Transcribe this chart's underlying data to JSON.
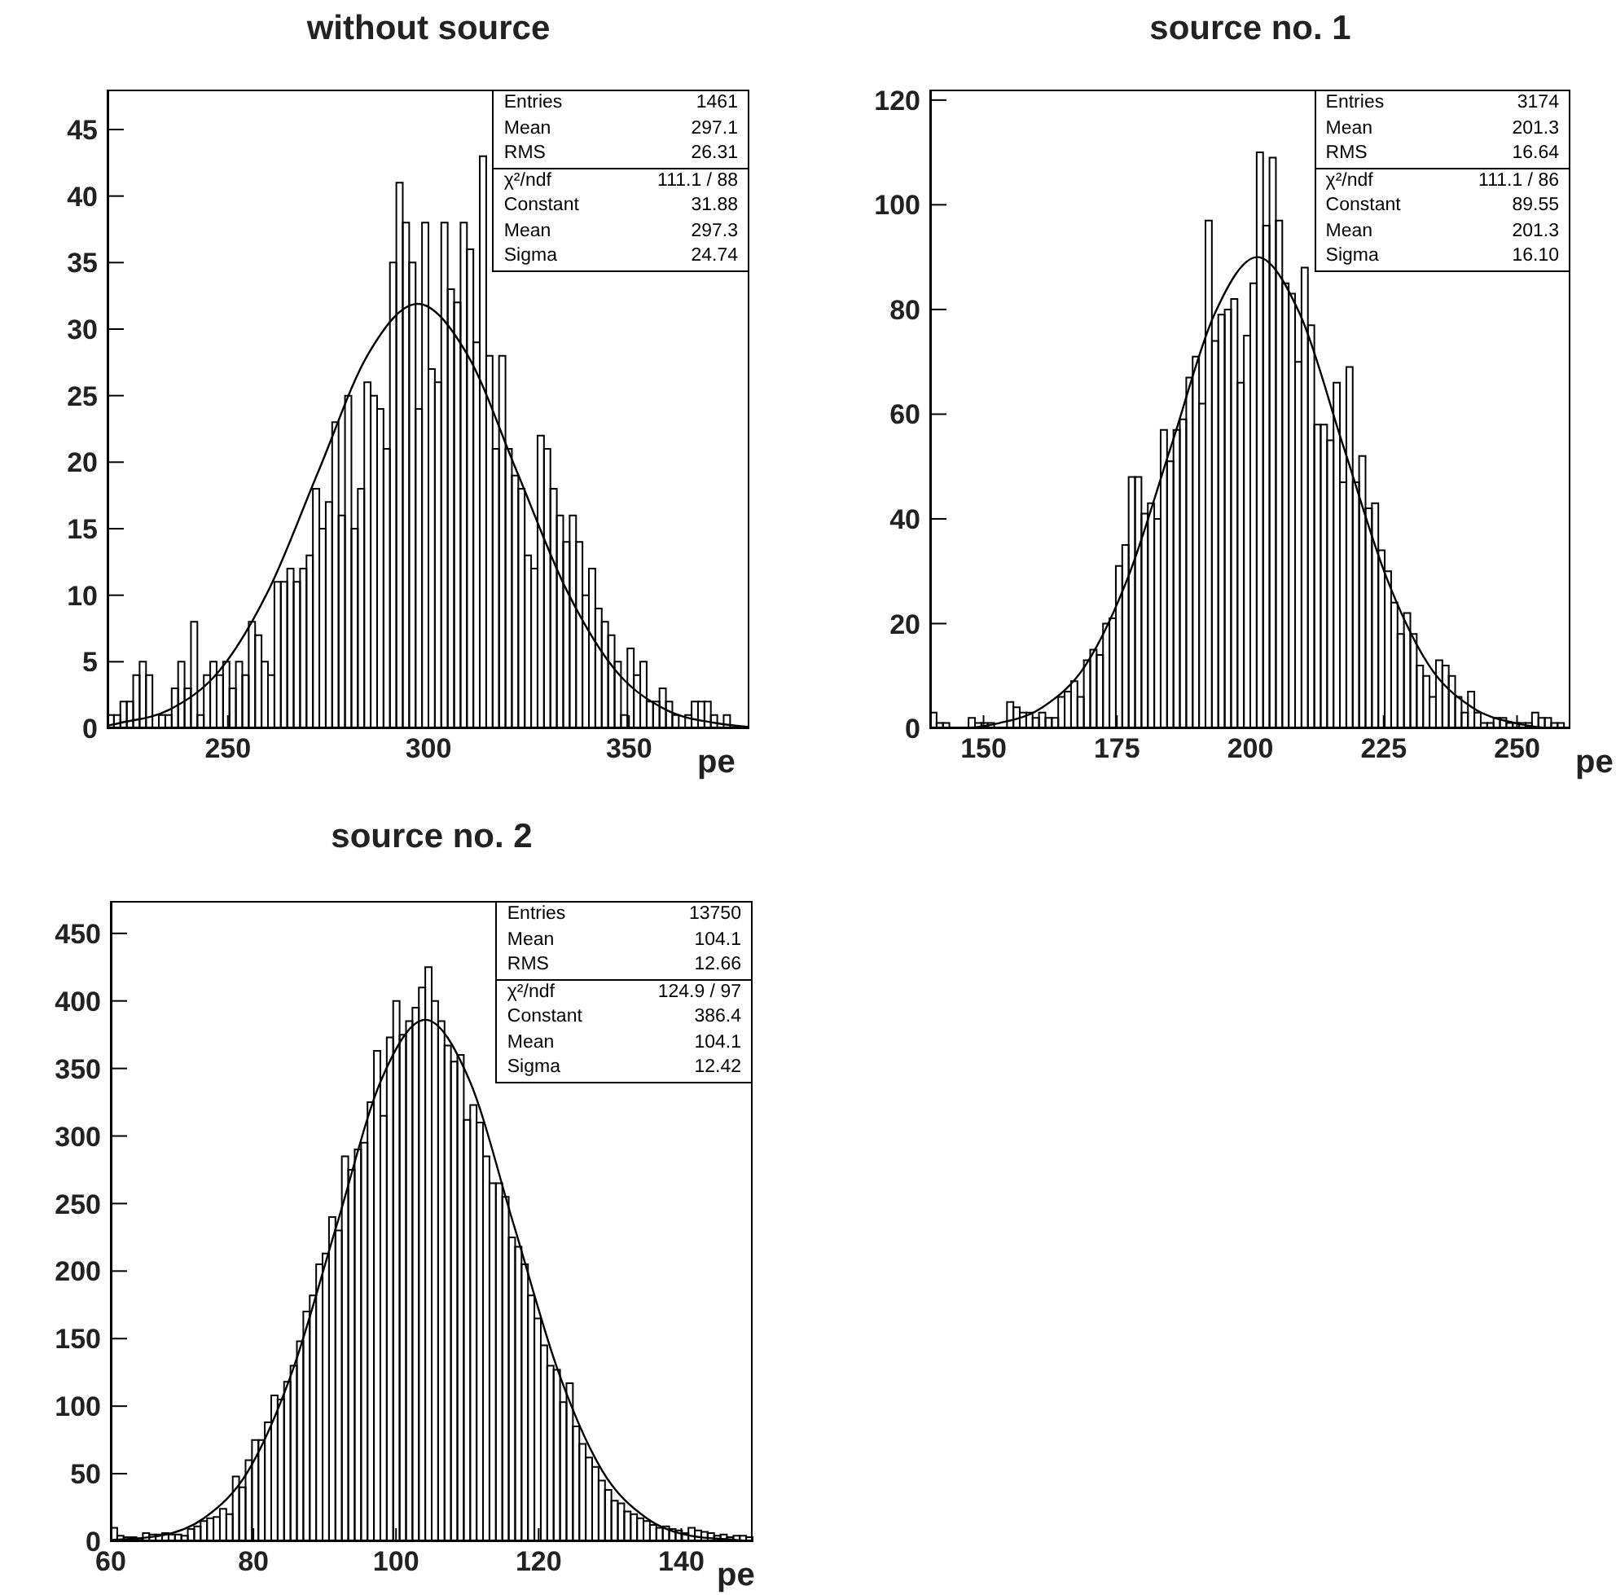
{
  "chart_data": [
    {
      "type": "histogram",
      "title": "without source",
      "xlabel": "pe",
      "color": "#000000",
      "xlim": [
        220,
        380
      ],
      "xticks": [
        250,
        300,
        350
      ],
      "ylim": [
        0,
        48
      ],
      "yticks": [
        0,
        5,
        10,
        15,
        20,
        25,
        30,
        35,
        40,
        45
      ],
      "bins": [
        220,
        221.6,
        223.2,
        224.8,
        226.4,
        228,
        229.6,
        231.2,
        232.8,
        234.4,
        236,
        237.6,
        239.2,
        240.8,
        242.4,
        244,
        245.6,
        247.2,
        248.8,
        250.4,
        252,
        253.6,
        255.2,
        256.8,
        258.4,
        260,
        261.6,
        263.2,
        264.8,
        266.4,
        268,
        269.6,
        271.2,
        272.8,
        274.4,
        276,
        277.6,
        279.2,
        280.8,
        282.4,
        284,
        285.6,
        287.2,
        288.8,
        290.4,
        292,
        293.6,
        295.2,
        296.8,
        298.4,
        300,
        301.6,
        303.2,
        304.8,
        306.4,
        308,
        309.6,
        311.2,
        312.8,
        314.4,
        316,
        317.6,
        319.2,
        320.8,
        322.4,
        324,
        325.6,
        327.2,
        328.8,
        330.4,
        332,
        333.6,
        335.2,
        336.8,
        338.4,
        340,
        341.6,
        343.2,
        344.8,
        346.4,
        348,
        349.6,
        351.2,
        352.8,
        354.4,
        356,
        357.6,
        359.2,
        360.8,
        362.4,
        364,
        365.6,
        367.2,
        368.8,
        370.4,
        372,
        373.6,
        375.2,
        376.8,
        378.4,
        380
      ],
      "values": [
        1,
        1,
        2,
        2,
        4,
        5,
        4,
        0,
        1,
        1,
        3,
        5,
        3,
        8,
        1,
        4,
        5,
        4,
        5,
        3,
        5,
        4,
        8,
        7,
        5,
        4,
        11,
        11,
        12,
        11,
        12,
        13,
        18,
        15,
        17,
        23,
        16,
        25,
        15,
        18,
        26,
        25,
        24,
        21,
        35,
        41,
        38,
        35,
        24,
        38,
        27,
        26,
        38,
        33,
        32,
        38,
        36,
        29,
        43,
        28,
        21,
        28,
        21,
        19,
        18,
        13,
        12,
        22,
        21,
        18,
        16,
        14,
        16,
        14,
        10,
        12,
        9,
        8,
        7,
        5,
        1,
        6,
        4,
        5,
        2,
        2,
        3,
        2,
        1,
        0,
        1,
        2,
        2,
        2,
        1,
        0,
        1,
        0,
        0,
        0
      ],
      "annotations": [
        "Entries 1461",
        "Mean 297.1",
        "RMS 26.31",
        "χ²/ndf 111.1 / 88",
        "Constant 31.88",
        "Mean 297.3",
        "Sigma 24.74"
      ],
      "series": [
        {
          "type": "line",
          "color": "#000000",
          "x": [
            220,
            223.08,
            235.45,
            247.82,
            260.19,
            272.56,
            284.93,
            297.3,
            309.67,
            322.04,
            334.41,
            346.78,
            359.15,
            371.52,
            380
          ],
          "values": [
            0.2,
            0.4,
            1.4,
            4.3,
            10.4,
            19.3,
            28.1,
            31.9,
            28.1,
            19.3,
            10.4,
            4.3,
            1.4,
            0.4,
            0.1
          ]
        }
      ]
    },
    {
      "type": "histogram",
      "title": "source no. 1",
      "xlabel": "pe",
      "color": "#000000",
      "xlim": [
        140,
        260
      ],
      "xticks": [
        150,
        175,
        200,
        225,
        250
      ],
      "ylim": [
        0,
        122
      ],
      "yticks": [
        0,
        20,
        40,
        60,
        80,
        100,
        120
      ],
      "bins": [
        140,
        141.2,
        142.4,
        143.6,
        144.8,
        146,
        147.2,
        148.4,
        149.6,
        150.8,
        152,
        153.2,
        154.4,
        155.6,
        156.8,
        158,
        159.2,
        160.4,
        161.6,
        162.8,
        164,
        165.2,
        166.4,
        167.6,
        168.8,
        170,
        171.2,
        172.4,
        173.6,
        174.8,
        176,
        177.2,
        178.4,
        179.6,
        180.8,
        182,
        183.2,
        184.4,
        185.6,
        186.8,
        188,
        189.2,
        190.4,
        191.6,
        192.8,
        194,
        195.2,
        196.4,
        197.6,
        198.8,
        200,
        201.2,
        202.4,
        203.6,
        204.8,
        206,
        207.2,
        208.4,
        209.6,
        210.8,
        212,
        213.2,
        214.4,
        215.6,
        216.8,
        218,
        219.2,
        220.4,
        221.6,
        222.8,
        224,
        225.2,
        226.4,
        227.6,
        228.8,
        230,
        231.2,
        232.4,
        233.6,
        234.8,
        236,
        237.2,
        238.4,
        239.6,
        240.8,
        242,
        243.2,
        244.4,
        245.6,
        246.8,
        248,
        249.2,
        250.4,
        251.6,
        252.8,
        254,
        255.2,
        256.4,
        257.6,
        258.8,
        260
      ],
      "values": [
        3,
        1,
        1,
        0,
        0,
        0,
        2,
        1,
        1,
        1,
        0,
        0,
        5,
        4,
        3,
        3,
        2,
        3,
        2,
        2,
        6,
        7,
        9,
        6,
        13,
        15,
        14,
        20,
        21,
        31,
        35,
        48,
        48,
        41,
        43,
        40,
        57,
        51,
        57,
        59,
        67,
        71,
        62,
        97,
        74,
        79,
        80,
        82,
        66,
        75,
        85,
        110,
        96,
        109,
        97,
        85,
        83,
        70,
        88,
        77,
        58,
        58,
        55,
        66,
        47,
        69,
        47,
        52,
        42,
        43,
        34,
        30,
        24,
        18,
        22,
        18,
        12,
        10,
        6,
        13,
        12,
        10,
        6,
        3,
        7,
        3,
        1,
        1,
        2,
        2,
        1,
        1,
        1,
        1,
        3,
        2,
        2,
        1,
        1,
        0
      ],
      "annotations": [
        "Entries 3174",
        "Mean 201.3",
        "RMS 16.64",
        "χ²/ndf 111.1 / 86",
        "Constant 89.55",
        "Mean 201.3",
        "Sigma 16.10"
      ],
      "series": [
        {
          "type": "line",
          "color": "#000000",
          "x": [
            140,
            144.95,
            153,
            161.05,
            169.1,
            177.15,
            185.2,
            193.25,
            201.3,
            209.35,
            217.4,
            225.45,
            233.5,
            241.55,
            249.6,
            257.65,
            260
          ],
          "values": [
            0,
            0,
            1,
            4,
            12,
            29,
            54,
            79,
            90,
            79,
            54,
            29,
            12,
            4,
            1,
            0,
            0
          ]
        }
      ]
    },
    {
      "type": "histogram",
      "title": "source no. 2",
      "xlabel": "pe",
      "color": "#000000",
      "xlim": [
        60,
        150
      ],
      "xticks": [
        60,
        80,
        100,
        120,
        140
      ],
      "ylim": [
        0,
        474
      ],
      "yticks": [
        0,
        50,
        100,
        150,
        200,
        250,
        300,
        350,
        400,
        450
      ],
      "bins": [
        60,
        60.9,
        61.8,
        62.7,
        63.6,
        64.5,
        65.4,
        66.3,
        67.2,
        68.1,
        69,
        69.9,
        70.8,
        71.7,
        72.6,
        73.5,
        74.4,
        75.3,
        76.2,
        77.1,
        78,
        78.9,
        79.8,
        80.7,
        81.6,
        82.5,
        83.4,
        84.3,
        85.2,
        86.1,
        87,
        87.9,
        88.8,
        89.7,
        90.6,
        91.5,
        92.4,
        93.3,
        94.2,
        95.1,
        96,
        96.9,
        97.8,
        98.7,
        99.6,
        100.5,
        101.4,
        102.3,
        103.2,
        104.1,
        105,
        105.9,
        106.8,
        107.7,
        108.6,
        109.5,
        110.4,
        111.3,
        112.2,
        113.1,
        114,
        114.9,
        115.8,
        116.7,
        117.6,
        118.5,
        119.4,
        120.3,
        121.2,
        122.1,
        123,
        123.9,
        124.8,
        125.7,
        126.6,
        127.5,
        128.4,
        129.3,
        130.2,
        131.1,
        132,
        132.9,
        133.8,
        134.7,
        135.6,
        136.5,
        137.4,
        138.3,
        139.2,
        140.1,
        141,
        141.9,
        142.8,
        143.7,
        144.6,
        145.5,
        146.4,
        147.3,
        148.2,
        149.1,
        150
      ],
      "values": [
        10,
        4,
        3,
        3,
        2,
        6,
        5,
        5,
        6,
        5,
        5,
        4,
        9,
        11,
        15,
        17,
        18,
        24,
        20,
        48,
        40,
        60,
        75,
        75,
        88,
        108,
        105,
        118,
        130,
        148,
        170,
        182,
        205,
        213,
        240,
        230,
        285,
        275,
        290,
        295,
        325,
        363,
        315,
        373,
        400,
        375,
        385,
        395,
        410,
        425,
        400,
        385,
        367,
        355,
        360,
        312,
        323,
        310,
        285,
        265,
        265,
        255,
        225,
        218,
        205,
        182,
        165,
        145,
        130,
        127,
        103,
        117,
        85,
        72,
        62,
        55,
        45,
        38,
        30,
        28,
        22,
        20,
        17,
        15,
        12,
        10,
        11,
        9,
        8,
        6,
        10,
        8,
        7,
        6,
        4,
        5,
        3,
        4,
        4,
        3
      ],
      "annotations": [
        "Entries 13750",
        "Mean 104.1",
        "RMS 12.66",
        "χ²/ndf 124.9 / 97",
        "Constant 386.4",
        "Mean 104.1",
        "Sigma 12.42"
      ],
      "series": [
        {
          "type": "line",
          "color": "#000000",
          "x": [
            60,
            66.84,
            73.05,
            79.26,
            85.47,
            91.68,
            97.89,
            104.1,
            110.31,
            116.52,
            122.73,
            128.94,
            135.15,
            141.36,
            147.57,
            150
          ],
          "values": [
            1,
            4,
            17,
            52,
            126,
            234,
            341,
            386,
            341,
            234,
            126,
            52,
            17,
            4,
            1,
            0
          ]
        }
      ]
    }
  ]
}
